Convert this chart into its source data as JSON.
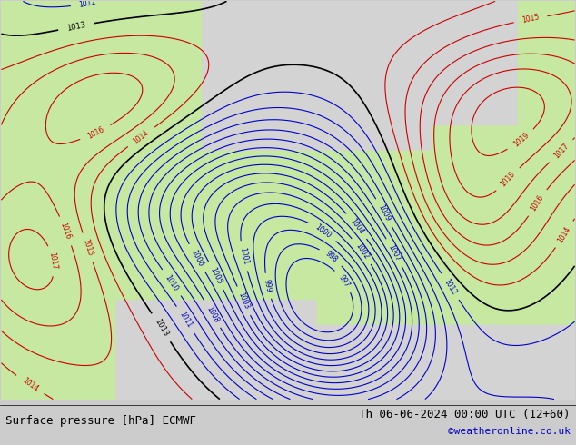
{
  "title_left": "Surface pressure [hPa] ECMWF",
  "title_right": "Th 06-06-2024 00:00 UTC (12+60)",
  "credit": "©weatheronline.co.uk",
  "background_color": "#e8e8e8",
  "land_color_rgb": [
    0.78,
    0.91,
    0.63,
    1.0
  ],
  "sea_color_rgb": [
    0.83,
    0.83,
    0.83,
    1.0
  ],
  "pressure_min": 997,
  "pressure_max": 1020,
  "pivot_pressure": 1013,
  "label_fontsize": 5.5,
  "title_fontsize": 9,
  "credit_color": "#0000cc",
  "title_color": "#000000",
  "blue_color": "#0000cc",
  "red_color": "#cc0000",
  "black_color": "#000000"
}
